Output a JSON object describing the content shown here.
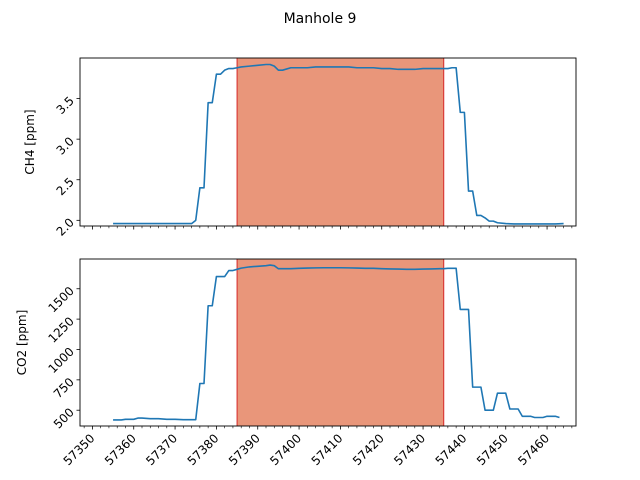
{
  "chart_data": {
    "title": "Manhole 9",
    "shared_x": {
      "range": [
        57347,
        57467
      ],
      "major_ticks": [
        57350,
        57360,
        57370,
        57380,
        57390,
        57400,
        57410,
        57420,
        57430,
        57440,
        57450,
        57460
      ],
      "minor_step": 2,
      "tick_labels": [
        "57350",
        "57360",
        "57370",
        "57380",
        "57390",
        "57400",
        "57410",
        "57420",
        "57430",
        "57440",
        "57450",
        "57460"
      ]
    },
    "highlight": {
      "x_start": 57385,
      "x_end": 57435,
      "fill_color": "#e9967a",
      "edge_color": "#d62728"
    },
    "line_color": "#1f77b4",
    "panels": [
      {
        "type": "line",
        "ylabel": "CH4 [ppm]",
        "ylim": [
          1.93,
          4.0
        ],
        "yticks": [
          2.0,
          2.5,
          3.0,
          3.5
        ],
        "ytick_labels": [
          "2.0",
          "2.5",
          "3.0",
          "3.5"
        ],
        "x": [
          57355,
          57357,
          57359,
          57361,
          57363,
          57365,
          57367,
          57369,
          57371,
          57373,
          57374,
          57375,
          57376,
          57377,
          57378,
          57379,
          57380,
          57381,
          57382,
          57383,
          57384,
          57385,
          57386,
          57388,
          57390,
          57392,
          57393,
          57394,
          57395,
          57396,
          57398,
          57400,
          57402,
          57404,
          57406,
          57408,
          57410,
          57412,
          57414,
          57416,
          57418,
          57420,
          57422,
          57424,
          57426,
          57428,
          57430,
          57432,
          57434,
          57435,
          57436,
          57437,
          57438,
          57439,
          57440,
          57441,
          57442,
          57443,
          57444,
          57445,
          57446,
          57447,
          57448,
          57450,
          57452,
          57454,
          57456,
          57458,
          57460,
          57462,
          57464
        ],
        "y": [
          1.96,
          1.96,
          1.96,
          1.96,
          1.96,
          1.96,
          1.96,
          1.96,
          1.96,
          1.96,
          1.96,
          2.0,
          2.4,
          2.4,
          3.45,
          3.45,
          3.8,
          3.8,
          3.85,
          3.87,
          3.87,
          3.88,
          3.89,
          3.9,
          3.91,
          3.92,
          3.92,
          3.9,
          3.85,
          3.85,
          3.88,
          3.88,
          3.88,
          3.89,
          3.89,
          3.89,
          3.89,
          3.89,
          3.88,
          3.88,
          3.88,
          3.87,
          3.87,
          3.86,
          3.86,
          3.86,
          3.87,
          3.87,
          3.87,
          3.87,
          3.87,
          3.88,
          3.88,
          3.33,
          3.33,
          2.36,
          2.36,
          2.06,
          2.06,
          2.03,
          1.99,
          1.99,
          1.97,
          1.96,
          1.955,
          1.955,
          1.955,
          1.955,
          1.955,
          1.955,
          1.96
        ]
      },
      {
        "type": "line",
        "ylabel": "CO2 [ppm]",
        "ylim": [
          370,
          1745
        ],
        "yticks": [
          500,
          750,
          1000,
          1250,
          1500
        ],
        "ytick_labels": [
          "500",
          "750",
          "1000",
          "1250",
          "1500"
        ],
        "x": [
          57355,
          57357,
          57358,
          57360,
          57361,
          57362,
          57364,
          57366,
          57368,
          57370,
          57372,
          57374,
          57375,
          57376,
          57377,
          57378,
          57379,
          57380,
          57381,
          57382,
          57383,
          57384,
          57385,
          57386,
          57387,
          57388,
          57390,
          57392,
          57393,
          57394,
          57395,
          57396,
          57398,
          57400,
          57402,
          57404,
          57406,
          57408,
          57410,
          57412,
          57414,
          57416,
          57418,
          57420,
          57422,
          57424,
          57426,
          57428,
          57430,
          57432,
          57434,
          57435,
          57436,
          57437,
          57438,
          57439,
          57440,
          57441,
          57442,
          57443,
          57444,
          57445,
          57446,
          57447,
          57448,
          57449,
          57450,
          57451,
          57452,
          57453,
          57454,
          57455,
          57456,
          57457,
          57458,
          57459,
          57460,
          57461,
          57462,
          57463
        ],
        "y": [
          420,
          420,
          425,
          425,
          435,
          435,
          430,
          430,
          425,
          425,
          422,
          422,
          422,
          720,
          720,
          1360,
          1360,
          1600,
          1600,
          1600,
          1650,
          1650,
          1660,
          1670,
          1675,
          1680,
          1685,
          1690,
          1695,
          1690,
          1665,
          1665,
          1665,
          1668,
          1670,
          1672,
          1673,
          1673,
          1673,
          1672,
          1670,
          1668,
          1668,
          1665,
          1663,
          1662,
          1660,
          1660,
          1662,
          1663,
          1665,
          1665,
          1668,
          1668,
          1668,
          1330,
          1330,
          1330,
          690,
          690,
          690,
          500,
          500,
          500,
          640,
          640,
          640,
          510,
          510,
          510,
          450,
          450,
          450,
          440,
          440,
          440,
          450,
          450,
          450,
          440
        ]
      }
    ]
  }
}
